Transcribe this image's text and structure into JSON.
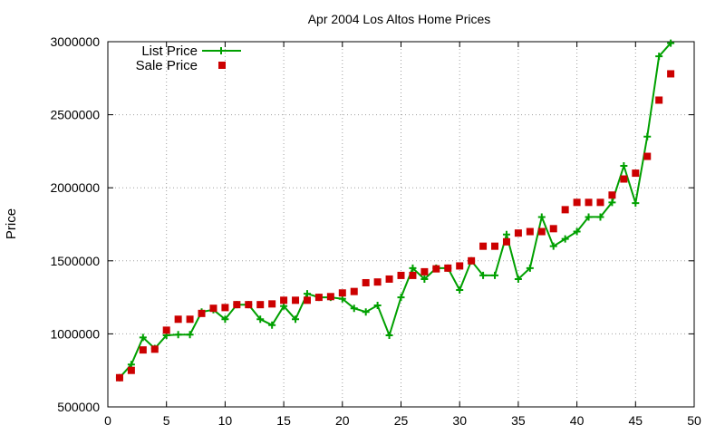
{
  "chart_data": {
    "type": "line",
    "title": "Apr 2004 Los Altos Home Prices",
    "xlabel": "",
    "ylabel": "Price",
    "xlim": [
      0,
      50
    ],
    "ylim": [
      500000,
      3000000
    ],
    "xticks": [
      0,
      5,
      10,
      15,
      20,
      25,
      30,
      35,
      40,
      45,
      50
    ],
    "yticks": [
      500000,
      1000000,
      1500000,
      2000000,
      2500000,
      3000000
    ],
    "grid": true,
    "legend_position": "top-left",
    "series": [
      {
        "name": "List Price",
        "style": "line-with-plus-markers",
        "color": "#00a000",
        "x": [
          1,
          2,
          3,
          4,
          5,
          6,
          7,
          8,
          9,
          10,
          11,
          12,
          13,
          14,
          15,
          16,
          17,
          18,
          19,
          20,
          21,
          22,
          23,
          24,
          25,
          26,
          27,
          28,
          29,
          30,
          31,
          32,
          33,
          34,
          35,
          36,
          37,
          38,
          39,
          40,
          41,
          42,
          43,
          44,
          45,
          46,
          47,
          48
        ],
        "y": [
          700000,
          790000,
          975000,
          900000,
          990000,
          995000,
          995000,
          1150000,
          1165000,
          1100000,
          1200000,
          1200000,
          1100000,
          1060000,
          1190000,
          1100000,
          1275000,
          1250000,
          1250000,
          1240000,
          1175000,
          1150000,
          1195000,
          990000,
          1250000,
          1450000,
          1375000,
          1450000,
          1450000,
          1300000,
          1500000,
          1400000,
          1400000,
          1680000,
          1375000,
          1450000,
          1800000,
          1600000,
          1650000,
          1700000,
          1800000,
          1800000,
          1900000,
          2150000,
          1895000,
          2350000,
          2900000,
          2990000
        ]
      },
      {
        "name": "Sale Price",
        "style": "square-markers",
        "color": "#cc0000",
        "x": [
          1,
          2,
          3,
          4,
          5,
          6,
          7,
          8,
          9,
          10,
          11,
          12,
          13,
          14,
          15,
          16,
          17,
          18,
          19,
          20,
          21,
          22,
          23,
          24,
          25,
          26,
          27,
          28,
          29,
          30,
          31,
          32,
          33,
          34,
          35,
          36,
          37,
          38,
          39,
          40,
          41,
          42,
          43,
          44,
          45,
          46,
          47,
          48
        ],
        "y": [
          700000,
          750000,
          890000,
          895000,
          1025000,
          1100000,
          1100000,
          1140000,
          1175000,
          1180000,
          1200000,
          1200000,
          1200000,
          1205000,
          1230000,
          1230000,
          1230000,
          1250000,
          1255000,
          1280000,
          1290000,
          1350000,
          1355000,
          1375000,
          1400000,
          1400000,
          1425000,
          1445000,
          1450000,
          1465000,
          1500000,
          1600000,
          1600000,
          1630000,
          1690000,
          1700000,
          1700000,
          1720000,
          1850000,
          1900000,
          1900000,
          1900000,
          1950000,
          2060000,
          2100000,
          2215000,
          2600000,
          2780000
        ]
      }
    ]
  }
}
